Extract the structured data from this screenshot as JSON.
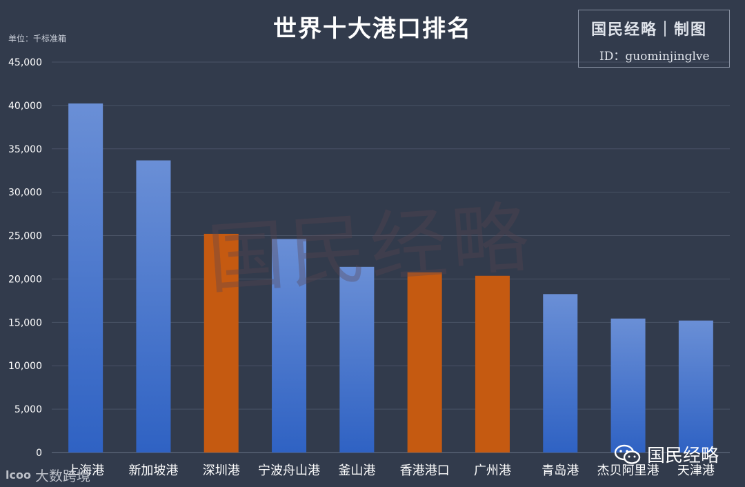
{
  "header": {
    "title": "世界十大港口排名",
    "unit": "单位：千标准箱"
  },
  "brand": {
    "line1": "国民经略｜制图",
    "line2": "ID：guominjinglve"
  },
  "watermark": "国民经略",
  "wechat_label": "国民经略",
  "source_label": "大数跨境",
  "source_logo": "lcoo",
  "colors": {
    "background": "#323b4c",
    "blue_top": "#6a8fd6",
    "blue_bottom": "#2f62c3",
    "orange": "#c55a11",
    "grid": "#4a5366",
    "text": "#ffffff"
  },
  "chart_data": {
    "type": "bar",
    "title": "世界十大港口排名",
    "ylabel": "单位：千标准箱",
    "xlabel": "",
    "categories": [
      "上海港",
      "新加坡港",
      "深圳港",
      "宁波舟山港",
      "釜山港",
      "香港港口",
      "广州港",
      "青岛港",
      "杰贝阿里港",
      "天津港"
    ],
    "values": [
      40230,
      33670,
      25210,
      24610,
      21400,
      20770,
      20370,
      18260,
      15440,
      15210
    ],
    "highlight": [
      false,
      false,
      true,
      false,
      false,
      true,
      true,
      false,
      false,
      false
    ],
    "ylim": [
      0,
      45000
    ],
    "yticks": [
      0,
      5000,
      10000,
      15000,
      20000,
      25000,
      30000,
      35000,
      40000,
      45000
    ],
    "ytick_labels": [
      "0",
      "5,000",
      "10,000",
      "15,000",
      "20,000",
      "25,000",
      "30,000",
      "35,000",
      "40,000",
      "45,000"
    ],
    "grid": true,
    "legend": "none"
  }
}
